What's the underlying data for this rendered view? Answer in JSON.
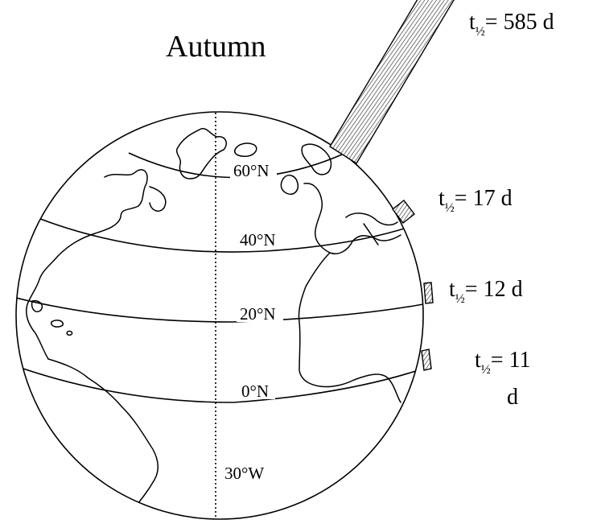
{
  "title": "Autumn",
  "latitude_labels": [
    "60°N",
    "40°N",
    "20°N",
    "0°N"
  ],
  "meridian_label": "30°W",
  "half_lives": [
    {
      "prefix": "t",
      "subscript": "½",
      "suffix": "= 585 d"
    },
    {
      "prefix": "t",
      "subscript": "½",
      "suffix": "= 17 d"
    },
    {
      "prefix": "t",
      "subscript": "½",
      "suffix": "= 12 d"
    },
    {
      "prefix": "t",
      "subscript": "½",
      "suffix": "= 11",
      "line2": "d"
    }
  ]
}
